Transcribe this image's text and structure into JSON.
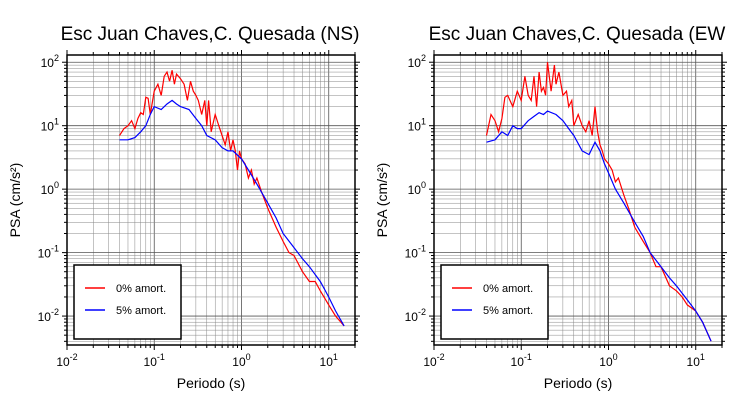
{
  "chart_data": [
    {
      "type": "line",
      "title": "Esc Juan Chaves,C. Quesada (NS)",
      "xlabel": "Periodo (s)",
      "ylabel": "PSA (cm/s²)",
      "x_scale": "log",
      "y_scale": "log",
      "xlim": [
        0.01,
        20
      ],
      "ylim": [
        0.0035,
        130
      ],
      "grid": true,
      "legend_position": "bottom-left",
      "x_ticks": [
        "10-2",
        "10-1",
        "100",
        "101"
      ],
      "y_ticks": [
        "10-2",
        "10-1",
        "100",
        "101",
        "102"
      ],
      "series": [
        {
          "name": "0% amort.",
          "color": "#ff0000",
          "x": [
            0.04,
            0.045,
            0.05,
            0.055,
            0.06,
            0.065,
            0.07,
            0.075,
            0.08,
            0.085,
            0.09,
            0.1,
            0.11,
            0.12,
            0.13,
            0.14,
            0.15,
            0.16,
            0.17,
            0.18,
            0.2,
            0.22,
            0.24,
            0.26,
            0.28,
            0.3,
            0.32,
            0.35,
            0.38,
            0.4,
            0.42,
            0.45,
            0.48,
            0.5,
            0.55,
            0.6,
            0.65,
            0.7,
            0.75,
            0.8,
            0.85,
            0.9,
            0.95,
            1.0,
            1.1,
            1.2,
            1.3,
            1.4,
            1.5,
            1.7,
            2.0,
            2.5,
            3.0,
            3.5,
            4.0,
            5.0,
            6.0,
            7.0,
            8.0,
            10.0,
            12.0,
            15.0
          ],
          "y": [
            7,
            9,
            10,
            12,
            9,
            13,
            16,
            15,
            28,
            27,
            15,
            35,
            45,
            30,
            60,
            70,
            50,
            75,
            45,
            65,
            55,
            45,
            25,
            50,
            35,
            30,
            25,
            15,
            25,
            10,
            25,
            8,
            12,
            15,
            10,
            7,
            5,
            8,
            4,
            6,
            4,
            2,
            4,
            3,
            2.5,
            1.5,
            2,
            1.2,
            1.5,
            0.9,
            0.5,
            0.25,
            0.15,
            0.1,
            0.09,
            0.05,
            0.035,
            0.035,
            0.025,
            0.015,
            0.01,
            0.007
          ]
        },
        {
          "name": "5% amort.",
          "color": "#0000ff",
          "x": [
            0.04,
            0.05,
            0.06,
            0.07,
            0.08,
            0.09,
            0.1,
            0.12,
            0.14,
            0.16,
            0.18,
            0.2,
            0.25,
            0.3,
            0.35,
            0.4,
            0.5,
            0.6,
            0.7,
            0.8,
            1.0,
            1.2,
            1.5,
            2.0,
            2.5,
            3.0,
            4.0,
            5.0,
            6.0,
            8.0,
            10.0,
            12.0,
            15.0
          ],
          "y": [
            6,
            6,
            6.5,
            8,
            10,
            15,
            20,
            18,
            22,
            25,
            22,
            20,
            18,
            13,
            10,
            7,
            6,
            4.5,
            4,
            4,
            3,
            2,
            1.2,
            0.6,
            0.35,
            0.2,
            0.12,
            0.08,
            0.06,
            0.035,
            0.02,
            0.012,
            0.007
          ]
        }
      ]
    },
    {
      "type": "line",
      "title": "Esc Juan Chaves,C. Quesada (EW",
      "xlabel": "Periodo (s)",
      "ylabel": "PSA (cm/s²)",
      "x_scale": "log",
      "y_scale": "log",
      "xlim": [
        0.01,
        20
      ],
      "ylim": [
        0.0035,
        130
      ],
      "grid": true,
      "legend_position": "bottom-left",
      "x_ticks": [
        "10-2",
        "10-1",
        "100",
        "101"
      ],
      "y_ticks": [
        "10-2",
        "10-1",
        "100",
        "101",
        "102"
      ],
      "series": [
        {
          "name": "0% amort.",
          "color": "#ff0000",
          "x": [
            0.04,
            0.045,
            0.05,
            0.055,
            0.06,
            0.065,
            0.07,
            0.08,
            0.09,
            0.1,
            0.11,
            0.12,
            0.13,
            0.14,
            0.15,
            0.16,
            0.17,
            0.18,
            0.19,
            0.2,
            0.22,
            0.24,
            0.25,
            0.27,
            0.3,
            0.33,
            0.35,
            0.38,
            0.4,
            0.45,
            0.5,
            0.55,
            0.6,
            0.65,
            0.7,
            0.75,
            0.8,
            0.85,
            0.9,
            1.0,
            1.1,
            1.2,
            1.3,
            1.5,
            1.7,
            2.0,
            2.5,
            3.0,
            3.5,
            4.0,
            5.0,
            6.0,
            7.0,
            8.0,
            10.0,
            12.0,
            15.0
          ],
          "y": [
            7,
            15,
            12,
            8,
            13,
            28,
            30,
            20,
            35,
            25,
            60,
            30,
            25,
            60,
            20,
            70,
            35,
            40,
            30,
            100,
            35,
            90,
            45,
            70,
            30,
            35,
            20,
            25,
            10,
            15,
            10,
            8,
            12,
            7,
            20,
            8,
            5,
            4,
            3,
            2.5,
            2,
            1.3,
            1.5,
            0.8,
            0.5,
            0.25,
            0.15,
            0.1,
            0.06,
            0.06,
            0.03,
            0.025,
            0.02,
            0.015,
            0.012,
            0.008,
            0.004
          ]
        },
        {
          "name": "5% amort.",
          "color": "#0000ff",
          "x": [
            0.04,
            0.05,
            0.06,
            0.07,
            0.08,
            0.09,
            0.1,
            0.12,
            0.14,
            0.16,
            0.18,
            0.2,
            0.25,
            0.3,
            0.35,
            0.4,
            0.5,
            0.6,
            0.7,
            0.8,
            0.9,
            1.0,
            1.2,
            1.5,
            2.0,
            2.5,
            3.0,
            4.0,
            5.0,
            6.0,
            8.0,
            10.0,
            12.0,
            15.0
          ],
          "y": [
            5.5,
            6,
            8,
            7,
            10,
            9,
            9,
            12,
            14,
            16,
            15,
            17,
            15,
            12,
            9,
            7,
            4,
            3.5,
            5.5,
            4,
            2.5,
            1.8,
            1,
            0.6,
            0.3,
            0.18,
            0.1,
            0.06,
            0.04,
            0.03,
            0.018,
            0.012,
            0.008,
            0.004
          ]
        }
      ]
    }
  ]
}
